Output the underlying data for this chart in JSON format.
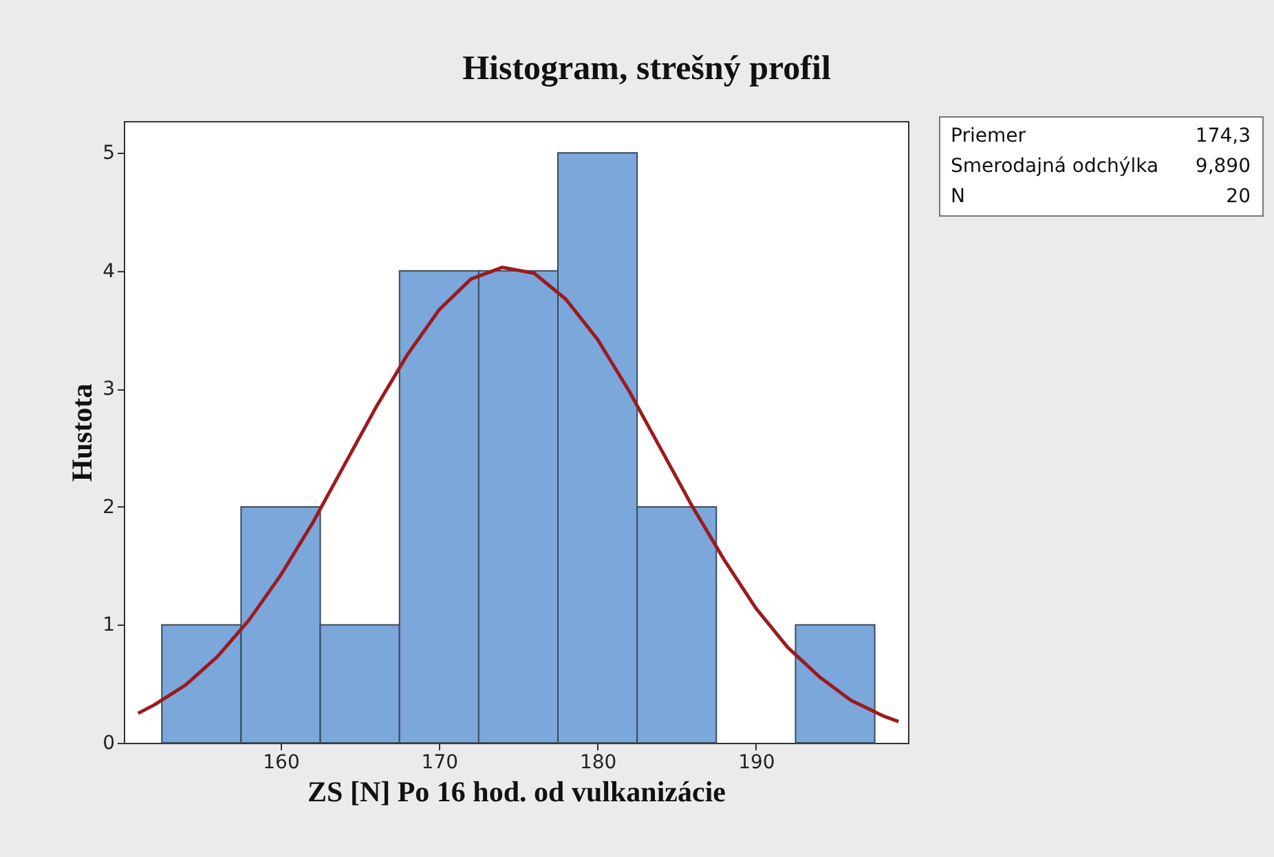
{
  "chart_data": {
    "type": "histogram",
    "title": "Histogram, strešný profil",
    "xlabel": "ZS [N] Po 16 hod. od vulkanizácie",
    "ylabel": "Hustota",
    "bins": [
      152.5,
      157.5,
      162.5,
      167.5,
      172.5,
      177.5,
      182.5,
      187.5,
      192.5,
      197.5
    ],
    "values": [
      1,
      2,
      1,
      4,
      4,
      5,
      2,
      0,
      1
    ],
    "color": "#7ba7db",
    "series": [
      {
        "type": "line",
        "color": "#9b1b1e",
        "x": [
          151,
          152,
          154,
          156,
          158,
          160,
          162,
          164,
          166,
          168,
          170,
          172,
          174,
          176,
          178,
          180,
          182,
          184,
          186,
          188,
          190,
          192,
          194,
          196,
          198,
          199
        ],
        "values": [
          0.25,
          0.32,
          0.49,
          0.73,
          1.04,
          1.42,
          1.86,
          2.35,
          2.84,
          3.29,
          3.67,
          3.93,
          4.03,
          3.98,
          3.76,
          3.42,
          2.98,
          2.49,
          2.0,
          1.55,
          1.14,
          0.81,
          0.56,
          0.36,
          0.23,
          0.18
        ]
      }
    ],
    "xlim": [
      150.1,
      199.6
    ],
    "xticks": [
      160,
      170,
      180,
      190
    ],
    "ylim": [
      0,
      5.27
    ],
    "yticks": [
      0,
      1,
      2,
      3,
      4,
      5
    ],
    "grid": false,
    "annotations": [
      "Priemer 174,3",
      "Smerodajná odchýlka 9,890",
      "N 20"
    ]
  }
}
